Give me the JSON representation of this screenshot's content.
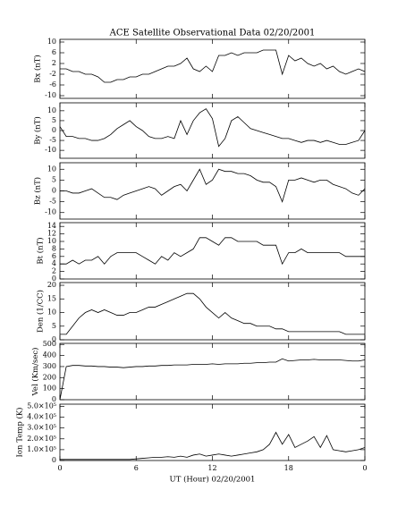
{
  "chart_data": [
    {
      "type": "line",
      "title": "ACE Satellite Observational Data  02/20/2001",
      "ylabel": "Bx (nT)",
      "color": "#000000",
      "x": [
        0,
        0.5,
        1,
        1.5,
        2,
        2.5,
        3,
        3.5,
        4,
        4.5,
        5,
        5.5,
        6,
        6.5,
        7,
        7.5,
        8,
        8.5,
        9,
        9.5,
        10,
        10.5,
        11,
        11.5,
        12,
        12.5,
        13,
        13.5,
        14,
        14.5,
        15,
        15.5,
        16,
        16.5,
        17,
        17.5,
        18,
        18.5,
        19,
        19.5,
        20,
        20.5,
        21,
        21.5,
        22,
        22.5,
        23,
        23.5,
        24
      ],
      "values": [
        0,
        0,
        -1,
        -1,
        -2,
        -2,
        -3,
        -5,
        -5,
        -4,
        -4,
        -3,
        -3,
        -2,
        -2,
        -1,
        0,
        1,
        1,
        2,
        4,
        0,
        -1,
        1,
        -1,
        5,
        5,
        6,
        5,
        6,
        6,
        6,
        7,
        7,
        7,
        -2,
        5,
        3,
        4,
        2,
        1,
        2,
        0,
        1,
        -1,
        -2,
        -1,
        0,
        -1
      ],
      "xlim": [
        0,
        24
      ],
      "xticks": [
        0,
        6,
        12,
        18,
        24
      ],
      "show_xtick_labels": false,
      "ylim": [
        -11,
        11
      ],
      "yticks": [
        -10,
        -6,
        -2,
        2,
        6,
        10
      ]
    },
    {
      "type": "line",
      "ylabel": "By (nT)",
      "color": "#000000",
      "x": [
        0,
        0.5,
        1,
        1.5,
        2,
        2.5,
        3,
        3.5,
        4,
        4.5,
        5,
        5.5,
        6,
        6.5,
        7,
        7.5,
        8,
        8.5,
        9,
        9.5,
        10,
        10.5,
        11,
        11.5,
        12,
        12.5,
        13,
        13.5,
        14,
        14.5,
        15,
        15.5,
        16,
        16.5,
        17,
        17.5,
        18,
        18.5,
        19,
        19.5,
        20,
        20.5,
        21,
        21.5,
        22,
        22.5,
        23,
        23.5,
        24
      ],
      "values": [
        2,
        -3,
        -3,
        -4,
        -4,
        -5,
        -5,
        -4,
        -2,
        1,
        3,
        5,
        2,
        0,
        -3,
        -4,
        -4,
        -3,
        -4,
        5,
        -2,
        5,
        9,
        11,
        6,
        -8,
        -4,
        5,
        7,
        4,
        1,
        0,
        -1,
        -2,
        -3,
        -4,
        -4,
        -5,
        -6,
        -5,
        -5,
        -6,
        -5,
        -6,
        -7,
        -7,
        -6,
        -5,
        0
      ],
      "xlim": [
        0,
        24
      ],
      "xticks": [
        0,
        6,
        12,
        18,
        24
      ],
      "show_xtick_labels": false,
      "ylim": [
        -14,
        14
      ],
      "yticks": [
        -10,
        -5,
        0,
        5,
        10
      ]
    },
    {
      "type": "line",
      "ylabel": "Bz (nT)",
      "color": "#000000",
      "x": [
        0,
        0.5,
        1,
        1.5,
        2,
        2.5,
        3,
        3.5,
        4,
        4.5,
        5,
        5.5,
        6,
        6.5,
        7,
        7.5,
        8,
        8.5,
        9,
        9.5,
        10,
        10.5,
        11,
        11.5,
        12,
        12.5,
        13,
        13.5,
        14,
        14.5,
        15,
        15.5,
        16,
        16.5,
        17,
        17.5,
        18,
        18.5,
        19,
        19.5,
        20,
        20.5,
        21,
        21.5,
        22,
        22.5,
        23,
        23.5,
        24
      ],
      "values": [
        0,
        0,
        -1,
        -1,
        0,
        1,
        -1,
        -3,
        -3,
        -4,
        -2,
        -1,
        0,
        1,
        2,
        1,
        -2,
        0,
        2,
        3,
        0,
        5,
        10,
        3,
        5,
        10,
        9,
        9,
        8,
        8,
        7,
        5,
        4,
        4,
        2,
        -5,
        5,
        5,
        6,
        5,
        4,
        5,
        5,
        3,
        2,
        1,
        -1,
        -2,
        1
      ],
      "xlim": [
        0,
        24
      ],
      "xticks": [
        0,
        6,
        12,
        18,
        24
      ],
      "show_xtick_labels": false,
      "ylim": [
        -13,
        13
      ],
      "yticks": [
        -10,
        -5,
        0,
        5,
        10
      ]
    },
    {
      "type": "line",
      "ylabel": "Bt (nT)",
      "color": "#000000",
      "x": [
        0,
        0.5,
        1,
        1.5,
        2,
        2.5,
        3,
        3.5,
        4,
        4.5,
        5,
        5.5,
        6,
        6.5,
        7,
        7.5,
        8,
        8.5,
        9,
        9.5,
        10,
        10.5,
        11,
        11.5,
        12,
        12.5,
        13,
        13.5,
        14,
        14.5,
        15,
        15.5,
        16,
        16.5,
        17,
        17.5,
        18,
        18.5,
        19,
        19.5,
        20,
        20.5,
        21,
        21.5,
        22,
        22.5,
        23,
        23.5,
        24
      ],
      "values": [
        4,
        4,
        5,
        4,
        5,
        5,
        6,
        4,
        6,
        7,
        7,
        7,
        7,
        6,
        5,
        4,
        6,
        5,
        7,
        6,
        7,
        8,
        11,
        11,
        10,
        9,
        11,
        11,
        10,
        10,
        10,
        10,
        9,
        9,
        9,
        4,
        7,
        7,
        8,
        7,
        7,
        7,
        7,
        7,
        7,
        6,
        6,
        6,
        6
      ],
      "xlim": [
        0,
        24
      ],
      "xticks": [
        0,
        6,
        12,
        18,
        24
      ],
      "show_xtick_labels": false,
      "ylim": [
        0,
        15
      ],
      "yticks": [
        0,
        2,
        4,
        6,
        8,
        10,
        12,
        14
      ]
    },
    {
      "type": "line",
      "ylabel": "Den (1/CC)",
      "color": "#000000",
      "x": [
        0,
        0.5,
        1,
        1.5,
        2,
        2.5,
        3,
        3.5,
        4,
        4.5,
        5,
        5.5,
        6,
        6.5,
        7,
        7.5,
        8,
        8.5,
        9,
        9.5,
        10,
        10.5,
        11,
        11.5,
        12,
        12.5,
        13,
        13.5,
        14,
        14.5,
        15,
        15.5,
        16,
        16.5,
        17,
        17.5,
        18,
        18.5,
        19,
        19.5,
        20,
        20.5,
        21,
        21.5,
        22,
        22.5,
        23,
        23.5,
        24
      ],
      "values": [
        2,
        2,
        5,
        8,
        10,
        11,
        10,
        11,
        10,
        9,
        9,
        10,
        10,
        11,
        12,
        12,
        13,
        14,
        15,
        16,
        17,
        17,
        15,
        12,
        10,
        8,
        10,
        8,
        7,
        6,
        6,
        5,
        5,
        5,
        4,
        4,
        3,
        3,
        3,
        3,
        3,
        3,
        3,
        3,
        3,
        2,
        2,
        2,
        2
      ],
      "xlim": [
        0,
        24
      ],
      "xticks": [
        0,
        6,
        12,
        18,
        24
      ],
      "show_xtick_labels": false,
      "ylim": [
        0,
        21
      ],
      "yticks": [
        0,
        5,
        10,
        15,
        20
      ]
    },
    {
      "type": "line",
      "ylabel": "Vel (Km/sec)",
      "color": "#000000",
      "x": [
        0,
        0.5,
        1,
        1.5,
        2,
        2.5,
        3,
        3.5,
        4,
        4.5,
        5,
        5.5,
        6,
        6.5,
        7,
        7.5,
        8,
        8.5,
        9,
        9.5,
        10,
        10.5,
        11,
        11.5,
        12,
        12.5,
        13,
        13.5,
        14,
        14.5,
        15,
        15.5,
        16,
        16.5,
        17,
        17.5,
        18,
        18.5,
        19,
        19.5,
        20,
        20.5,
        21,
        21.5,
        22,
        22.5,
        23,
        23.5,
        24
      ],
      "values": [
        0,
        300,
        310,
        310,
        305,
        305,
        300,
        300,
        295,
        295,
        290,
        295,
        300,
        300,
        305,
        305,
        310,
        310,
        315,
        315,
        315,
        320,
        320,
        320,
        325,
        320,
        325,
        325,
        325,
        330,
        330,
        335,
        335,
        340,
        340,
        370,
        350,
        355,
        360,
        360,
        365,
        360,
        360,
        360,
        360,
        355,
        350,
        350,
        360
      ],
      "xlim": [
        0,
        24
      ],
      "xticks": [
        0,
        6,
        12,
        18,
        24
      ],
      "show_xtick_labels": false,
      "ylim": [
        0,
        510
      ],
      "yticks": [
        0,
        100,
        200,
        300,
        400,
        500
      ]
    },
    {
      "type": "line",
      "ylabel": "Ion Temp (K)",
      "xlabel": "UT (Hour)  02/20/2001",
      "color": "#000000",
      "x": [
        0,
        0.5,
        1,
        1.5,
        2,
        2.5,
        3,
        3.5,
        4,
        4.5,
        5,
        5.5,
        6,
        6.5,
        7,
        7.5,
        8,
        8.5,
        9,
        9.5,
        10,
        10.5,
        11,
        11.5,
        12,
        12.5,
        13,
        13.5,
        14,
        14.5,
        15,
        15.5,
        16,
        16.5,
        17,
        17.5,
        18,
        18.5,
        19,
        19.5,
        20,
        20.5,
        21,
        21.5,
        22,
        22.5,
        23,
        23.5,
        24
      ],
      "values": [
        10000,
        10000,
        10000,
        10000,
        10000,
        10000,
        10000,
        10000,
        10000,
        10000,
        10000,
        10000,
        15000,
        20000,
        25000,
        30000,
        30000,
        35000,
        30000,
        40000,
        30000,
        50000,
        60000,
        40000,
        50000,
        60000,
        50000,
        40000,
        50000,
        60000,
        70000,
        80000,
        100000,
        150000,
        260000,
        150000,
        240000,
        120000,
        150000,
        180000,
        220000,
        120000,
        230000,
        100000,
        90000,
        80000,
        90000,
        100000,
        120000
      ],
      "xlim": [
        0,
        24
      ],
      "xticks": [
        0,
        6,
        12,
        18,
        {
          "value": 24,
          "label": "0"
        }
      ],
      "show_xtick_labels": true,
      "ylim": [
        0,
        520000
      ],
      "yticks": [
        0,
        {
          "value": 100000,
          "label": "1.0×10⁵"
        },
        {
          "value": 200000,
          "label": "2.0×10⁵"
        },
        {
          "value": 300000,
          "label": "3.0×10⁵"
        },
        {
          "value": 400000,
          "label": "4.0×10⁵"
        },
        {
          "value": 500000,
          "label": "5.0×10⁵"
        }
      ]
    }
  ]
}
